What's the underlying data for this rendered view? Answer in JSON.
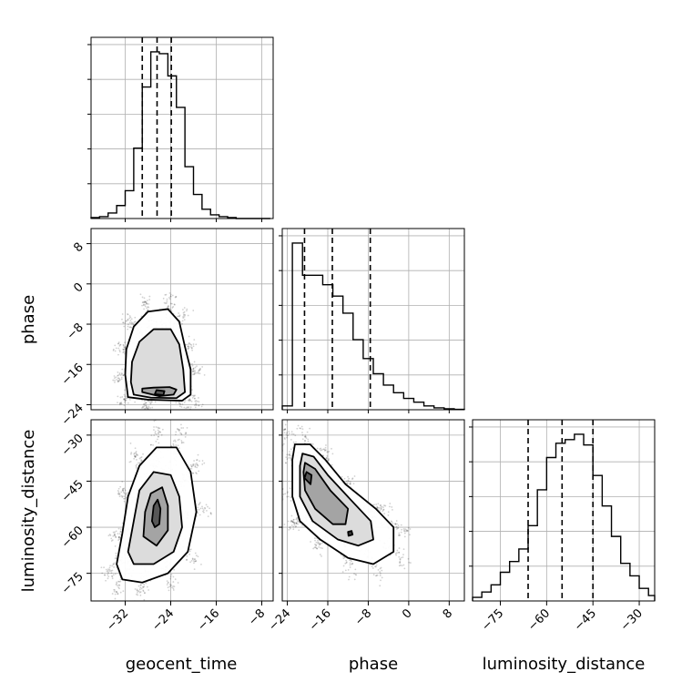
{
  "chart_data": {
    "type": "corner",
    "parameters": [
      "geocent_time",
      "phase",
      "luminosity_distance"
    ],
    "axis_labels": {
      "x": [
        "geocent_time",
        "phase",
        "luminosity_distance"
      ],
      "y": [
        "phase",
        "luminosity_distance"
      ]
    },
    "ranges": {
      "geocent_time": [
        -38,
        -6
      ],
      "phase": [
        -25,
        11
      ],
      "luminosity_distance": [
        -84,
        -25
      ]
    },
    "ticks": {
      "geocent_time": [
        -32,
        -24,
        -16,
        -8
      ],
      "phase": [
        -24,
        -16,
        -8,
        0,
        8
      ],
      "luminosity_distance": [
        -75,
        -60,
        -45,
        -30
      ]
    },
    "tick_labels": {
      "geocent_time": [
        "−32",
        "−24",
        "−16",
        "−8"
      ],
      "phase": [
        "−24",
        "−16",
        "−8",
        "0",
        "8"
      ],
      "luminosity_distance": [
        "−75",
        "−60",
        "−45",
        "−30"
      ]
    },
    "quantiles": {
      "geocent_time": [
        -29,
        -26.4,
        -23.9
      ],
      "phase": [
        -20.6,
        -15.1,
        -7.6
      ],
      "luminosity_distance": [
        -66,
        -55,
        -45
      ]
    },
    "histograms": {
      "geocent_time": {
        "bins": [
          -38,
          -36.5,
          -35,
          -33.5,
          -32,
          -30.5,
          -29,
          -27.5,
          -26,
          -24.5,
          -23,
          -21.5,
          -20,
          -18.5,
          -17,
          -15.5,
          -14,
          -12.5,
          -11,
          -9.5,
          -8,
          -6.5
        ],
        "counts": [
          0.005,
          0.01,
          0.03,
          0.07,
          0.15,
          0.38,
          0.71,
          0.9,
          0.89,
          0.77,
          0.6,
          0.28,
          0.13,
          0.05,
          0.02,
          0.01,
          0.005,
          0,
          0,
          0,
          0
        ]
      },
      "phase": {
        "bins": [
          -25,
          -23,
          -21,
          -19,
          -17,
          -15,
          -13,
          -11,
          -9,
          -7,
          -5,
          -3,
          -1,
          1,
          3,
          5,
          7,
          9,
          11
        ],
        "counts": [
          0.02,
          0.88,
          0.71,
          0.71,
          0.66,
          0.6,
          0.51,
          0.37,
          0.27,
          0.19,
          0.13,
          0.09,
          0.06,
          0.04,
          0.02,
          0.01,
          0.005,
          0.002
        ]
      },
      "luminosity_distance": {
        "bins": [
          -84,
          -81,
          -78,
          -75,
          -72,
          -69,
          -66,
          -63,
          -60,
          -57,
          -54,
          -51,
          -48,
          -45,
          -42,
          -39,
          -36,
          -33,
          -30,
          -27,
          -25
        ],
        "counts": [
          0.02,
          0.05,
          0.09,
          0.16,
          0.22,
          0.29,
          0.42,
          0.62,
          0.8,
          0.88,
          0.9,
          0.93,
          0.87,
          0.7,
          0.53,
          0.36,
          0.21,
          0.14,
          0.07,
          0.03
        ]
      }
    },
    "joint": [
      {
        "x": "geocent_time",
        "y": "phase",
        "center": [
          -26.4,
          -17.5
        ],
        "contours": [
          [
            [
              -31.5,
              -22.5
            ],
            [
              -28,
              -23
            ],
            [
              -22,
              -23.2
            ],
            [
              -20.5,
              -22
            ],
            [
              -20.5,
              -17
            ],
            [
              -21.5,
              -12.5
            ],
            [
              -22.5,
              -7.5
            ],
            [
              -24.5,
              -5
            ],
            [
              -28,
              -5.5
            ],
            [
              -30.5,
              -8.5
            ],
            [
              -31.8,
              -13
            ],
            [
              -32,
              -18
            ]
          ],
          [
            [
              -30.5,
              -22
            ],
            [
              -27.5,
              -22.6
            ],
            [
              -23,
              -22.7
            ],
            [
              -21.5,
              -21.5
            ],
            [
              -21.8,
              -17
            ],
            [
              -22.5,
              -12
            ],
            [
              -24,
              -9
            ],
            [
              -27,
              -9
            ],
            [
              -29.5,
              -11.5
            ],
            [
              -30.8,
              -15.5
            ],
            [
              -31,
              -19.5
            ]
          ],
          [
            [
              -29,
              -21.5
            ],
            [
              -26,
              -22.3
            ],
            [
              -23.5,
              -22
            ],
            [
              -23,
              -21
            ],
            [
              -24.2,
              -20.5
            ],
            [
              -27,
              -20.6
            ],
            [
              -29,
              -20.8
            ]
          ],
          [
            [
              -26.8,
              -21.9
            ],
            [
              -25.3,
              -22.1
            ],
            [
              -25.1,
              -21.3
            ],
            [
              -26.5,
              -21.1
            ]
          ]
        ]
      },
      {
        "x": "geocent_time",
        "y": "luminosity_distance",
        "center": [
          -26.5,
          -57
        ],
        "contours": [
          [
            [
              -33.5,
              -72
            ],
            [
              -32.5,
              -62
            ],
            [
              -31.5,
              -50
            ],
            [
              -29.5,
              -40
            ],
            [
              -26.5,
              -34
            ],
            [
              -23,
              -34
            ],
            [
              -20.5,
              -42
            ],
            [
              -19.5,
              -55
            ],
            [
              -21,
              -68
            ],
            [
              -24.5,
              -75
            ],
            [
              -29,
              -78
            ],
            [
              -32.5,
              -77
            ]
          ],
          [
            [
              -31.5,
              -68
            ],
            [
              -30.5,
              -58
            ],
            [
              -29.5,
              -48
            ],
            [
              -27,
              -42
            ],
            [
              -24,
              -43
            ],
            [
              -22.5,
              -50
            ],
            [
              -22,
              -60
            ],
            [
              -23.5,
              -68
            ],
            [
              -27,
              -72
            ],
            [
              -30.5,
              -72
            ]
          ],
          [
            [
              -28.8,
              -63
            ],
            [
              -28.5,
              -55
            ],
            [
              -27.5,
              -49
            ],
            [
              -25.5,
              -47
            ],
            [
              -24.5,
              -53
            ],
            [
              -24.5,
              -61
            ],
            [
              -26.5,
              -66
            ]
          ],
          [
            [
              -27.3,
              -58
            ],
            [
              -27,
              -53
            ],
            [
              -26.3,
              -51
            ],
            [
              -25.8,
              -54
            ],
            [
              -26,
              -59
            ],
            [
              -26.8,
              -60
            ]
          ]
        ]
      },
      {
        "x": "phase",
        "y": "luminosity_distance",
        "center": [
          -15,
          -52
        ],
        "contours": [
          [
            [
              -23,
              -38
            ],
            [
              -22.5,
              -33
            ],
            [
              -19.5,
              -33
            ],
            [
              -16.5,
              -38
            ],
            [
              -12.5,
              -46
            ],
            [
              -6.5,
              -54
            ],
            [
              -3,
              -60
            ],
            [
              -3,
              -68
            ],
            [
              -7,
              -72
            ],
            [
              -12,
              -70
            ],
            [
              -17.5,
              -64
            ],
            [
              -21.5,
              -58
            ],
            [
              -23,
              -50
            ]
          ],
          [
            [
              -21.5,
              -40
            ],
            [
              -21,
              -36
            ],
            [
              -18.8,
              -37
            ],
            [
              -16,
              -43
            ],
            [
              -11.5,
              -51
            ],
            [
              -7.5,
              -58
            ],
            [
              -7,
              -64
            ],
            [
              -10,
              -66
            ],
            [
              -14,
              -64
            ],
            [
              -19,
              -58
            ],
            [
              -21.5,
              -50
            ]
          ],
          [
            [
              -20.8,
              -42
            ],
            [
              -20.5,
              -39
            ],
            [
              -18.5,
              -41
            ],
            [
              -15.5,
              -48
            ],
            [
              -12,
              -54
            ],
            [
              -12.5,
              -59
            ],
            [
              -15,
              -59
            ],
            [
              -18.5,
              -54
            ],
            [
              -20.5,
              -48
            ]
          ],
          [
            [
              -20.6,
              -44
            ],
            [
              -20.2,
              -42
            ],
            [
              -19.2,
              -43
            ],
            [
              -19.4,
              -46
            ]
          ],
          [
            [
              -12,
              -61.5
            ],
            [
              -11.3,
              -61.2
            ],
            [
              -11.1,
              -62.4
            ],
            [
              -11.9,
              -62.8
            ]
          ]
        ]
      }
    ],
    "grid": true
  }
}
